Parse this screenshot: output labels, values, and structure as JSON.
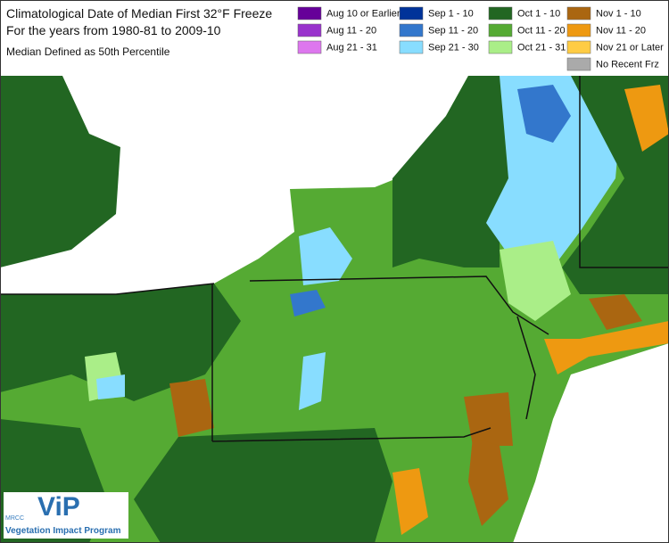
{
  "header": {
    "title": "Climatological Date of Median First 32°F Freeze",
    "subtitle": "For the years from 1980-81 to 2009-10",
    "note": "Median Defined as 50th Percentile"
  },
  "legend": [
    {
      "label": "Aug 10 or Earlier",
      "color": "#660099"
    },
    {
      "label": "Aug 11 - 20",
      "color": "#9933cc"
    },
    {
      "label": "Aug 21 - 31",
      "color": "#dd77ee"
    },
    {
      "label": "Sep 1 - 10",
      "color": "#003399"
    },
    {
      "label": "Sep 11 - 20",
      "color": "#3377cc"
    },
    {
      "label": "Sep 21 - 30",
      "color": "#88ddff"
    },
    {
      "label": "Oct 1 - 10",
      "color": "#226622"
    },
    {
      "label": "Oct 11 - 20",
      "color": "#55aa33"
    },
    {
      "label": "Oct 21 - 31",
      "color": "#aaee88"
    },
    {
      "label": "Nov 1 - 10",
      "color": "#aa6611"
    },
    {
      "label": "Nov 11 - 20",
      "color": "#ee9911"
    },
    {
      "label": "Nov 21 or Later",
      "color": "#ffcc44"
    },
    {
      "label": "No Recent Frz",
      "color": "#aaaaaa"
    }
  ],
  "logo": {
    "org": "MRCC",
    "name": "ViP",
    "caption": "Vegetation Impact Program"
  }
}
